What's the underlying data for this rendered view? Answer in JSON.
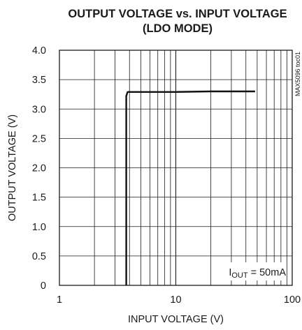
{
  "chart_data": {
    "type": "line",
    "title_lines": [
      "OUTPUT VOLTAGE vs. INPUT VOLTAGE",
      "(LDO MODE)"
    ],
    "xlabel": "INPUT VOLTAGE (V)",
    "ylabel": "OUTPUT VOLTAGE (V)",
    "x_scale": "log",
    "xlim": [
      1,
      100
    ],
    "ylim": [
      0,
      4.0
    ],
    "x_ticks": [
      {
        "value": 1,
        "label": "1"
      },
      {
        "value": 10,
        "label": "10"
      },
      {
        "value": 100,
        "label": "100"
      }
    ],
    "y_ticks": [
      {
        "value": 0,
        "label": "0"
      },
      {
        "value": 0.5,
        "label": "0.5"
      },
      {
        "value": 1.0,
        "label": "1.0"
      },
      {
        "value": 1.5,
        "label": "1.5"
      },
      {
        "value": 2.0,
        "label": "2.0"
      },
      {
        "value": 2.5,
        "label": "2.5"
      },
      {
        "value": 3.0,
        "label": "3.0"
      },
      {
        "value": 3.5,
        "label": "3.5"
      },
      {
        "value": 4.0,
        "label": "4.0"
      }
    ],
    "grid": true,
    "figure_id": "MAX5096 toc01",
    "annotation": {
      "main": "I",
      "sub": "OUT",
      "rest": " = 50mA"
    },
    "series": [
      {
        "x": [
          3.75,
          3.75,
          3.85,
          5,
          10,
          20,
          48
        ],
        "y": [
          0,
          3.22,
          3.29,
          3.29,
          3.29,
          3.3,
          3.3
        ]
      }
    ]
  }
}
